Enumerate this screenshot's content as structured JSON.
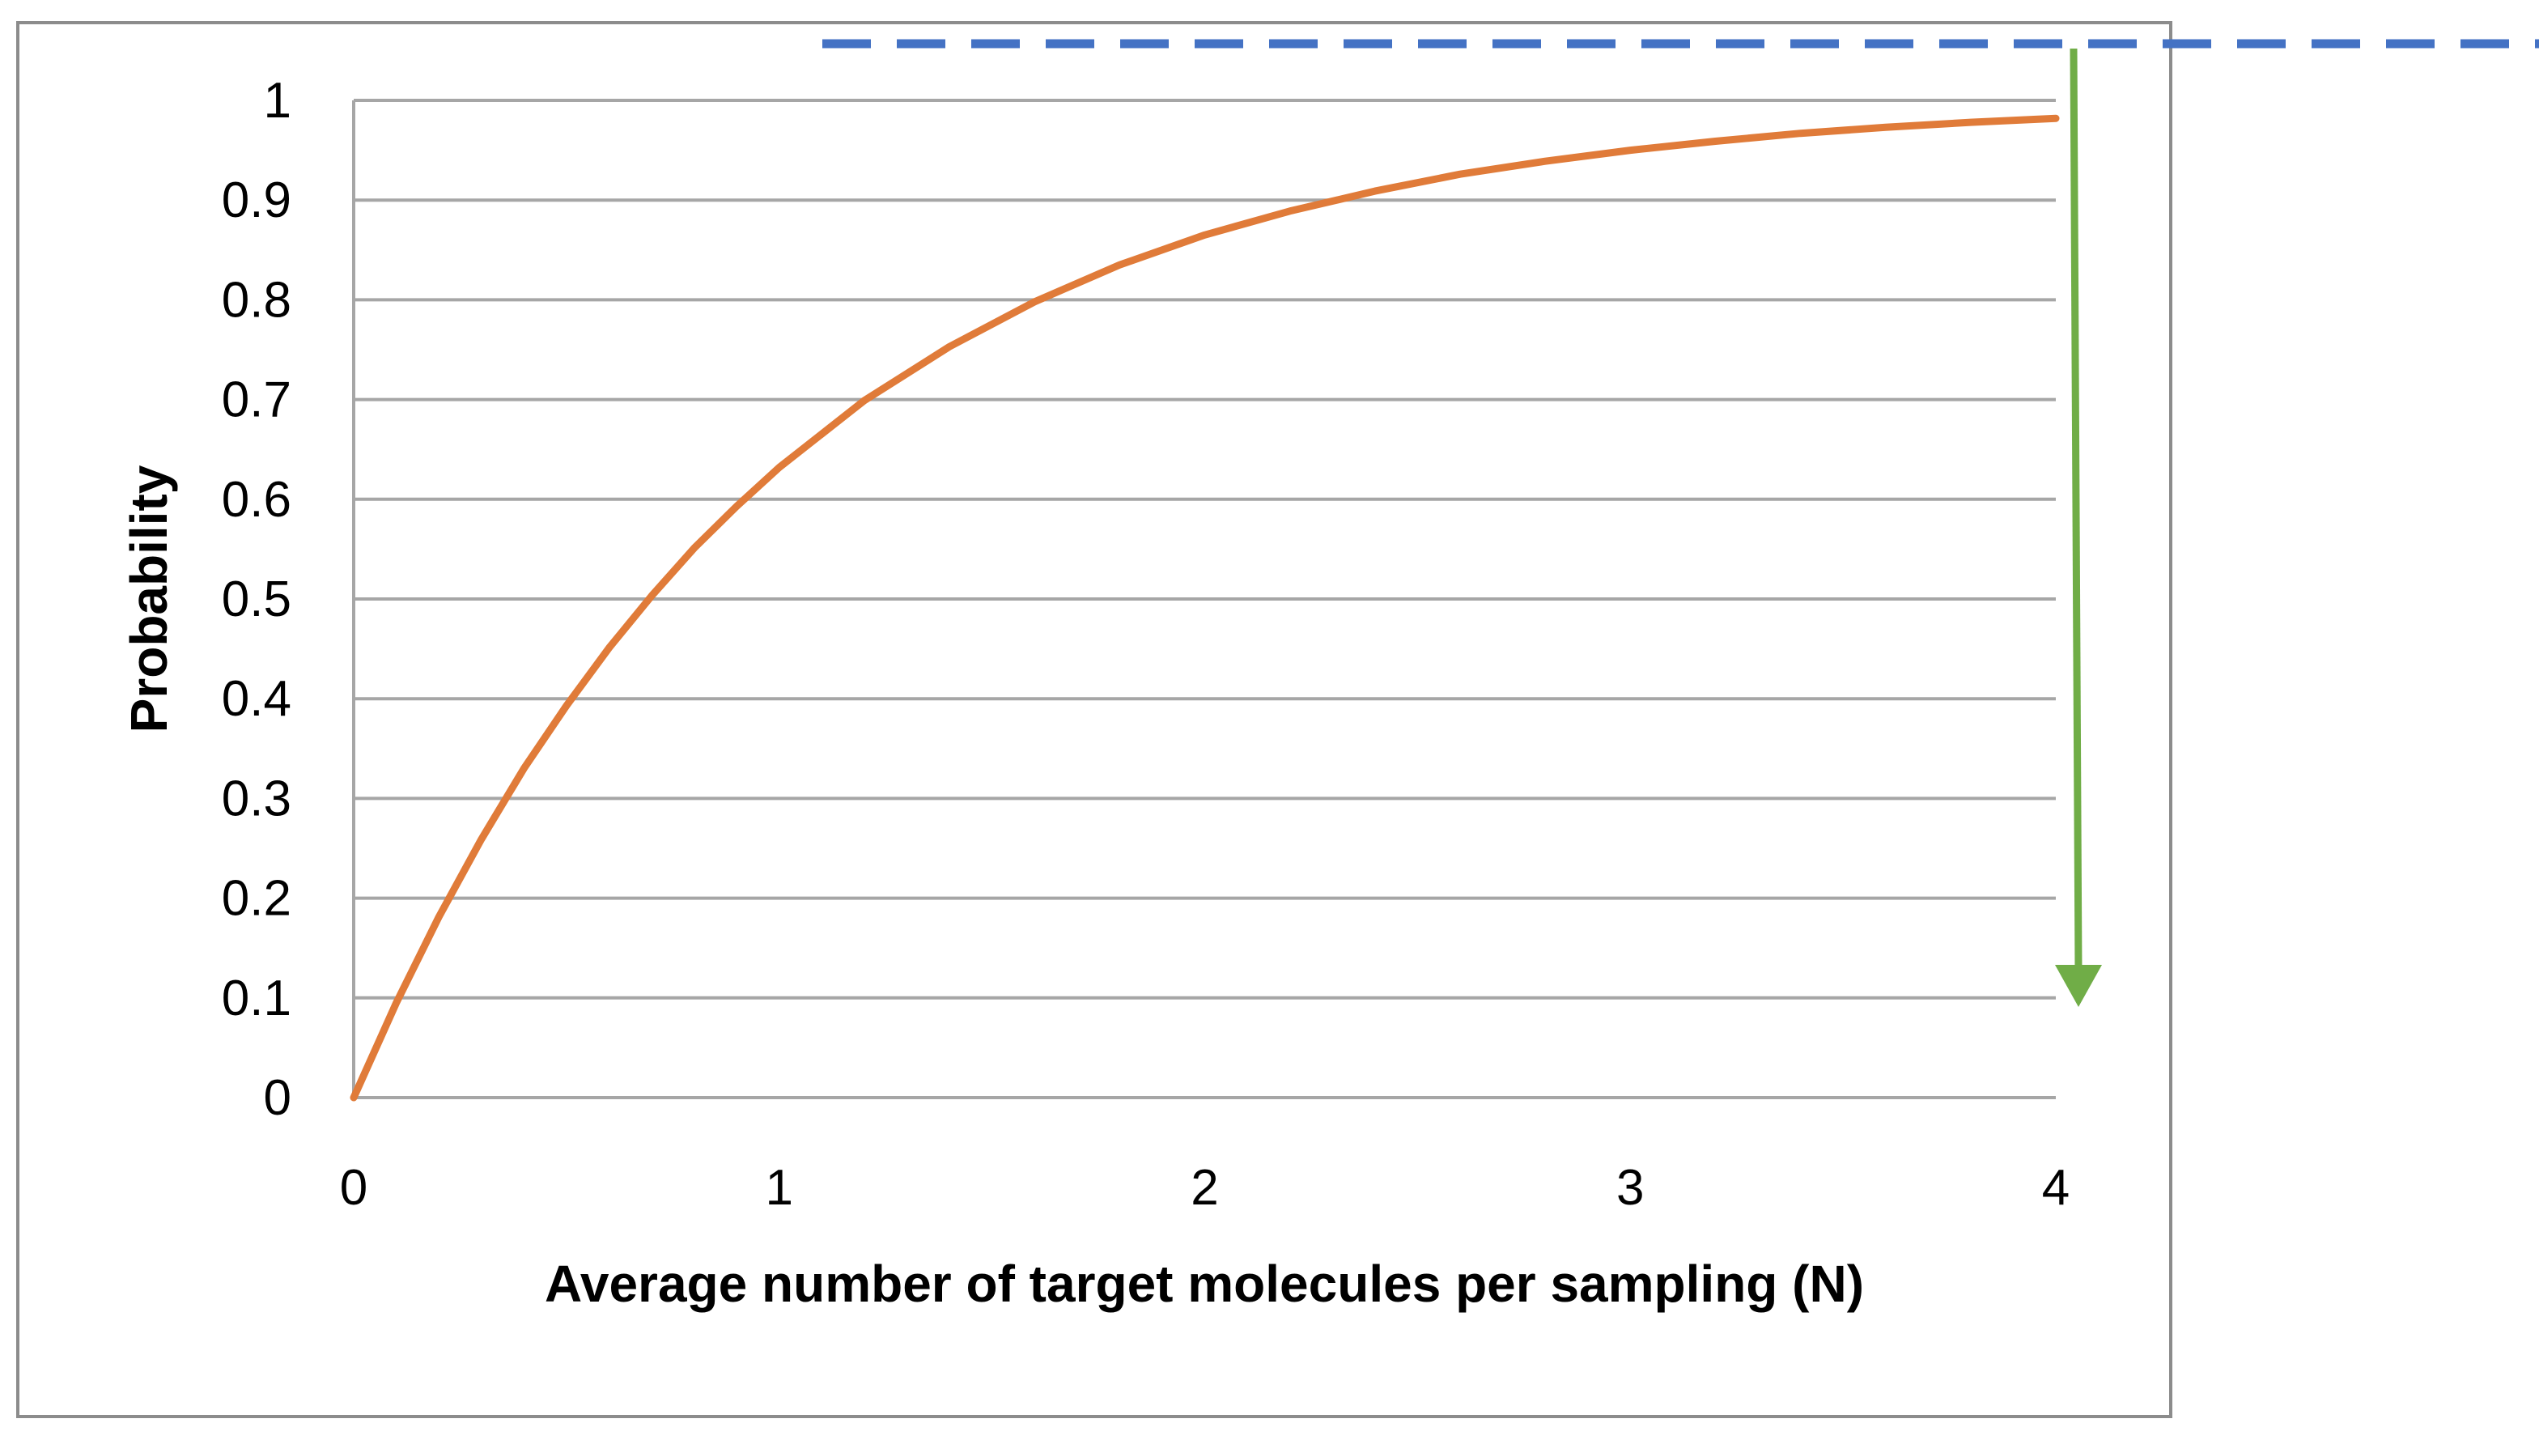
{
  "chart_data": {
    "type": "line",
    "title": "",
    "xlabel": "Average number of target molecules per sampling (N)",
    "ylabel": "Probability",
    "xlim": [
      0,
      4
    ],
    "ylim": [
      0,
      1
    ],
    "x_ticks": [
      "0",
      "1",
      "2",
      "3",
      "4"
    ],
    "y_ticks": [
      "0",
      "0.1",
      "0.2",
      "0.3",
      "0.4",
      "0.5",
      "0.6",
      "0.7",
      "0.8",
      "0.9",
      "1"
    ],
    "grid": true,
    "legend": "none",
    "series": [
      {
        "color": "#E07B39",
        "x": [
          0,
          0.1,
          0.2,
          0.3,
          0.4,
          0.5,
          0.6,
          0.7,
          0.8,
          0.9,
          1.0,
          1.2,
          1.4,
          1.6,
          1.8,
          2.0,
          2.2,
          2.4,
          2.6,
          2.8,
          3.0,
          3.2,
          3.4,
          3.6,
          3.8,
          4.0
        ],
        "y": [
          0,
          0.095,
          0.181,
          0.259,
          0.33,
          0.393,
          0.451,
          0.503,
          0.551,
          0.593,
          0.632,
          0.699,
          0.753,
          0.798,
          0.835,
          0.865,
          0.889,
          0.909,
          0.926,
          0.939,
          0.95,
          0.959,
          0.967,
          0.973,
          0.978,
          0.982
        ]
      }
    ],
    "annotations": [
      {
        "type": "dashed-line",
        "color": "#4472C4"
      },
      {
        "type": "arrow",
        "direction": "down",
        "color": "#70AD47"
      }
    ]
  }
}
